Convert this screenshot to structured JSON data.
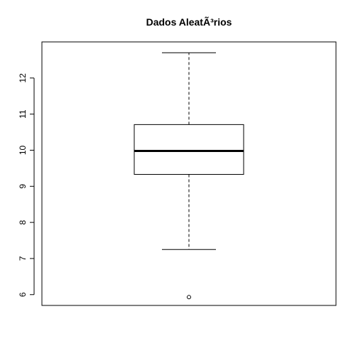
{
  "chart_data": {
    "type": "boxplot",
    "title": "Dados AleatÃ³rios",
    "xlabel": "",
    "ylabel": "",
    "ylim": [
      5.7,
      13.0
    ],
    "y_ticks": [
      6,
      7,
      8,
      9,
      10,
      11,
      12
    ],
    "grid": false,
    "box": {
      "min": 7.25,
      "q1": 9.33,
      "median": 9.98,
      "q3": 10.71,
      "max": 12.7,
      "outliers": [
        5.93
      ]
    }
  }
}
